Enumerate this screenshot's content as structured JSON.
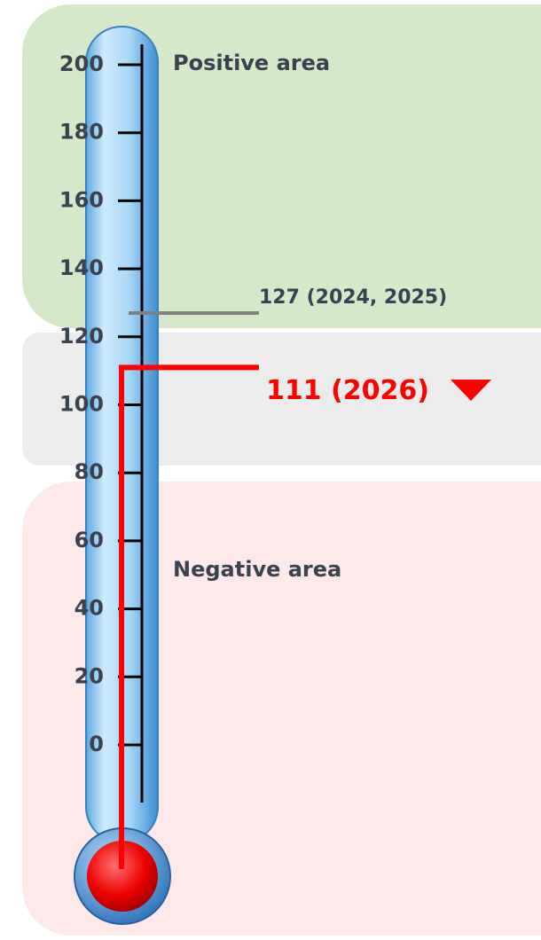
{
  "chart_data": {
    "type": "thermometer",
    "annotations": [
      "Positive area",
      "Negative area"
    ],
    "values": [
      127,
      111
    ],
    "value_labels": [
      "127 (2024, 2025)",
      "111 (2026)"
    ],
    "colors": [
      "#808080",
      "#ff0000"
    ],
    "ylim": [
      0,
      200
    ],
    "yticks": [
      0,
      20,
      40,
      60,
      80,
      100,
      120,
      140,
      160,
      180,
      200
    ]
  }
}
